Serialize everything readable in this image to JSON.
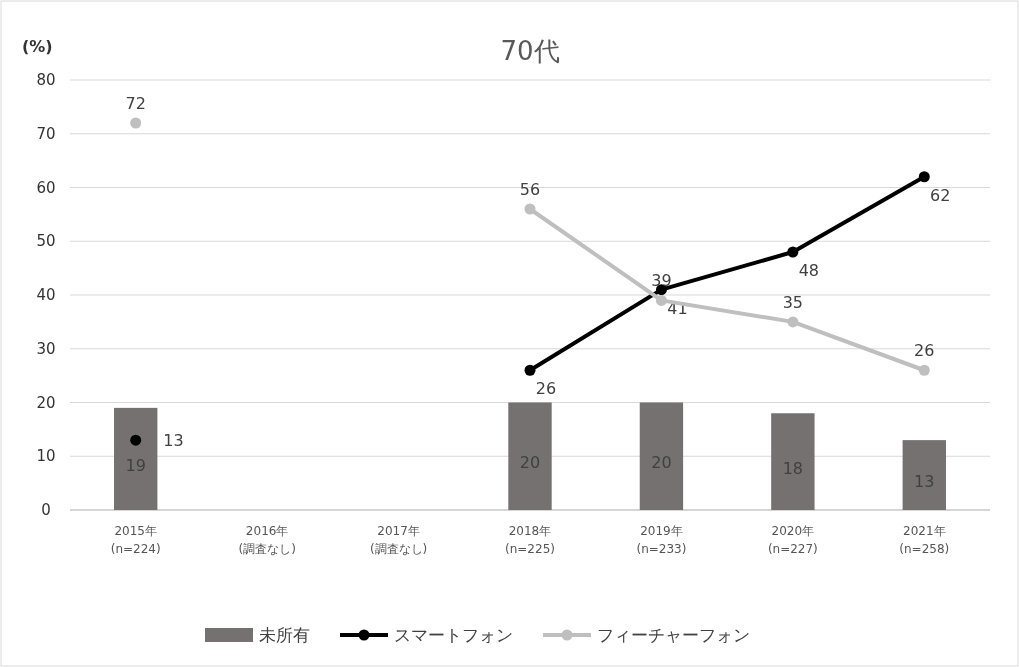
{
  "chart_data": {
    "type": "bar",
    "title": "70代",
    "ylabel": "(%)",
    "categories": [
      "2015年\n(n=224)",
      "2016年\n(調査なし)",
      "2017年\n(調査なし)",
      "2018年\n(n=225)",
      "2019年\n(n=233)",
      "2020年\n(n=227)",
      "2021年\n(n=258)"
    ],
    "series": [
      {
        "name": "未所有",
        "color": "#767171",
        "values": [
          19,
          null,
          null,
          20,
          20,
          18,
          13
        ]
      },
      {
        "name": "スマートフォン",
        "type": "line",
        "color": "#000000",
        "values": [
          13,
          null,
          null,
          26,
          41,
          48,
          62
        ]
      },
      {
        "name": "フィーチャーフォン",
        "type": "line",
        "color": "#bfbfbf",
        "values": [
          72,
          null,
          null,
          56,
          39,
          35,
          26
        ]
      }
    ],
    "ylim": [
      0,
      80
    ],
    "yticks": [
      0,
      10,
      20,
      30,
      40,
      50,
      60,
      70,
      80
    ],
    "grid": "y",
    "legend": "bottom",
    "marker": "circle",
    "data_labels": true
  }
}
